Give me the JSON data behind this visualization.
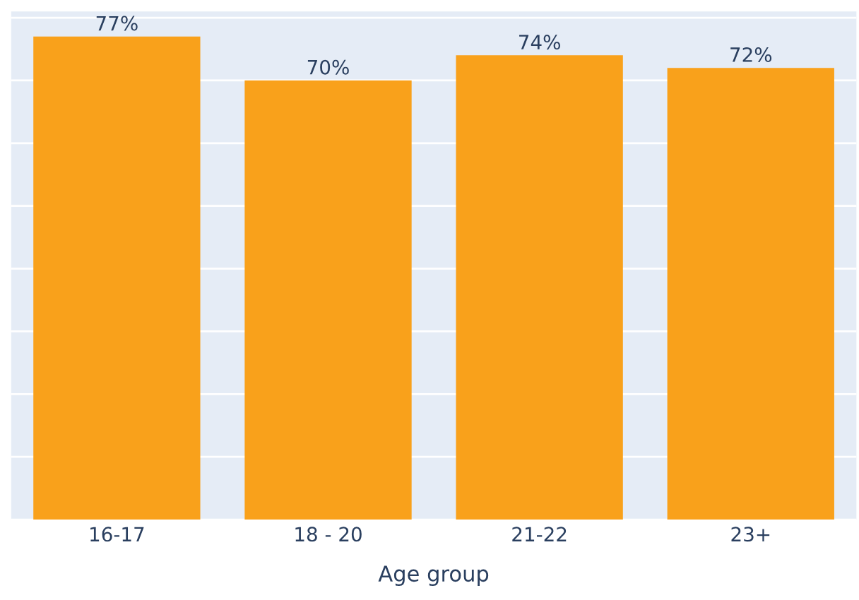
{
  "chart_data": {
    "type": "bar",
    "xlabel": "Age group",
    "categories": [
      "16-17",
      "18 - 20",
      "21-22",
      "23+"
    ],
    "values": [
      77,
      70,
      74,
      72
    ],
    "value_labels": [
      "77%",
      "70%",
      "74%",
      "72%"
    ],
    "color": "#f9a11b",
    "ylim": [
      0,
      81
    ],
    "yticks": [
      {
        "value": 0,
        "label": null
      },
      {
        "value": 10,
        "label": null
      },
      {
        "value": 20,
        "label": null
      },
      {
        "value": 30,
        "label": null
      },
      {
        "value": 40,
        "label": null
      },
      {
        "value": 50,
        "label": null
      },
      {
        "value": 60,
        "label": null
      },
      {
        "value": 70,
        "label": null
      },
      {
        "value": 80,
        "label": null
      }
    ],
    "tick_labels": "x",
    "grid": "y"
  }
}
